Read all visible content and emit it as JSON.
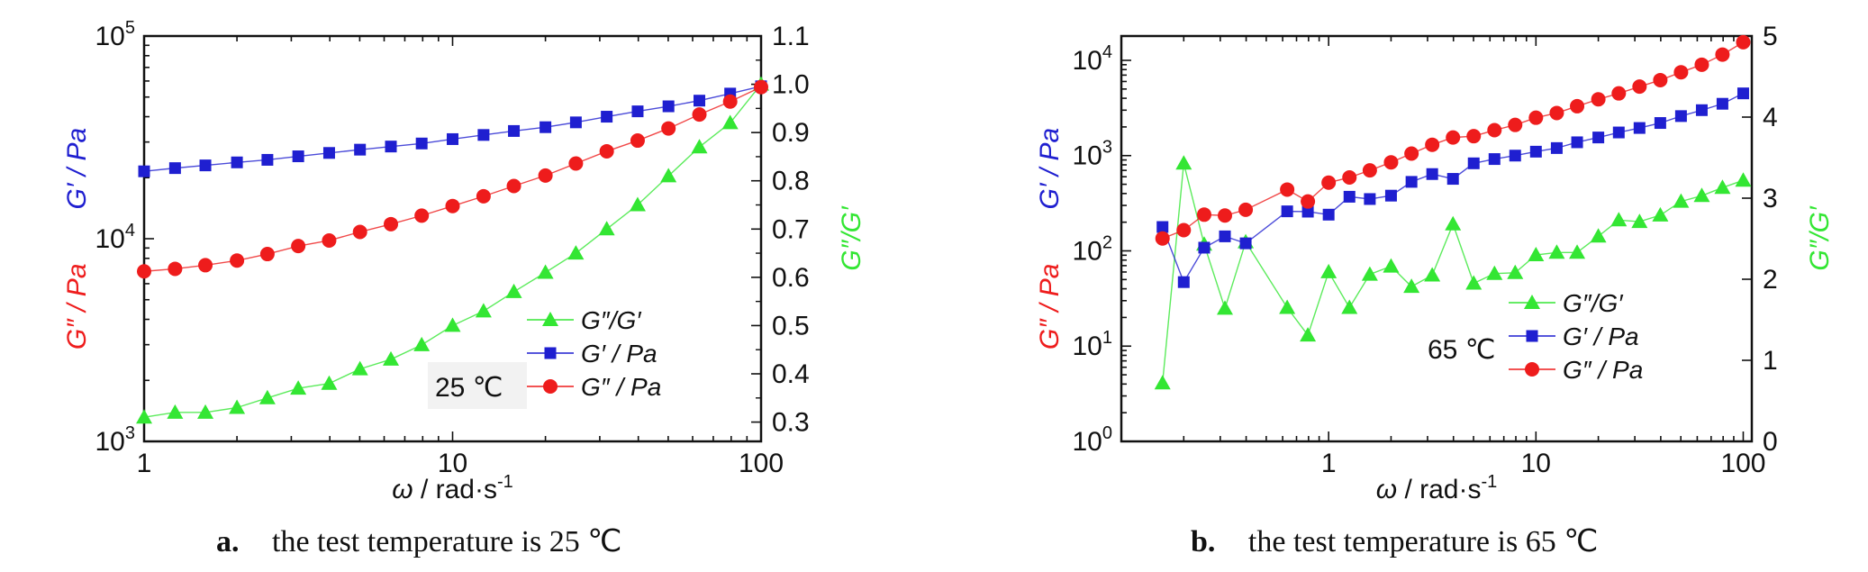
{
  "chart_data": [
    {
      "type": "line",
      "panel": "a",
      "caption_letter": "a.",
      "caption_text": "the test temperature is 25 ℃",
      "annotation": "25 ℃",
      "xlabel_symbol": "ω",
      "xlabel_unit": " / rad·s",
      "xlabel_sup": "-1",
      "x_scale": "log",
      "xlim": [
        1,
        100
      ],
      "x_ticks": [
        {
          "v": 1,
          "t": "1"
        },
        {
          "v": 10,
          "t": "10"
        },
        {
          "v": 100,
          "t": "100"
        }
      ],
      "y_left": {
        "scale": "log",
        "lim": [
          1000,
          100000
        ],
        "ticks": [
          {
            "v": 1000,
            "base": "10",
            "exp": "3"
          },
          {
            "v": 10000,
            "base": "10",
            "exp": "4"
          },
          {
            "v": 100000,
            "base": "10",
            "exp": "5"
          }
        ],
        "label_parts": [
          {
            "text": "G″ / Pa",
            "color": "#ee1c1c"
          },
          {
            "text": "G′ / Pa",
            "color": "#1f1fd0"
          }
        ]
      },
      "y_right": {
        "scale": "linear",
        "lim": [
          0.26,
          1.1
        ],
        "ticks": [
          {
            "v": 0.3,
            "t": "0.3"
          },
          {
            "v": 0.4,
            "t": "0.4"
          },
          {
            "v": 0.5,
            "t": "0.5"
          },
          {
            "v": 0.6,
            "t": "0.6"
          },
          {
            "v": 0.7,
            "t": "0.7"
          },
          {
            "v": 0.8,
            "t": "0.8"
          },
          {
            "v": 0.9,
            "t": "0.9"
          },
          {
            "v": 1.0,
            "t": "1.0"
          },
          {
            "v": 1.1,
            "t": "1.1"
          }
        ],
        "label": "G″/G′",
        "color": "#33e633"
      },
      "x": [
        1,
        1.26,
        1.58,
        2,
        2.51,
        3.16,
        3.98,
        5.01,
        6.31,
        7.94,
        10,
        12.6,
        15.8,
        20,
        25.1,
        31.6,
        39.8,
        50.1,
        63.1,
        79.4,
        100
      ],
      "series": [
        {
          "name": "G″/G′",
          "axis": "right",
          "marker": "triangle",
          "color": "#33e633",
          "values": [
            0.31,
            0.32,
            0.32,
            0.33,
            0.35,
            0.37,
            0.38,
            0.41,
            0.43,
            0.46,
            0.5,
            0.53,
            0.57,
            0.61,
            0.65,
            0.7,
            0.75,
            0.81,
            0.87,
            0.92,
            1.0
          ]
        },
        {
          "name": "G′ / Pa",
          "axis": "left",
          "marker": "square",
          "color": "#1f1fd0",
          "values": [
            21500,
            22300,
            23000,
            23800,
            24500,
            25500,
            26500,
            27500,
            28500,
            29500,
            31000,
            32500,
            34000,
            35500,
            37500,
            40000,
            42500,
            45000,
            48000,
            52000,
            56500
          ]
        },
        {
          "name": "G″ / Pa",
          "axis": "left",
          "marker": "circle",
          "color": "#ee1c1c",
          "values": [
            6900,
            7100,
            7400,
            7800,
            8400,
            9200,
            9800,
            10800,
            11800,
            13000,
            14500,
            16200,
            18200,
            20500,
            23500,
            27000,
            30500,
            35000,
            41000,
            47500,
            56000
          ]
        }
      ]
    },
    {
      "type": "line",
      "panel": "b",
      "caption_letter": "b.",
      "caption_text": "the test temperature is 65 ℃",
      "annotation": "65 ℃",
      "xlabel_symbol": "ω",
      "xlabel_unit": " / rad·s",
      "xlabel_sup": "-1",
      "x_scale": "log",
      "xlim": [
        0.1,
        110
      ],
      "x_ticks": [
        {
          "v": 1,
          "t": "1"
        },
        {
          "v": 10,
          "t": "10"
        },
        {
          "v": 100,
          "t": "100"
        }
      ],
      "y_left": {
        "scale": "log",
        "lim": [
          1,
          18000
        ],
        "ticks": [
          {
            "v": 1,
            "base": "10",
            "exp": "0"
          },
          {
            "v": 10,
            "base": "10",
            "exp": "1"
          },
          {
            "v": 100,
            "base": "10",
            "exp": "2"
          },
          {
            "v": 1000,
            "base": "10",
            "exp": "3"
          },
          {
            "v": 10000,
            "base": "10",
            "exp": "4"
          }
        ],
        "label_parts": [
          {
            "text": "G″ / Pa",
            "color": "#ee1c1c"
          },
          {
            "text": "G′ / Pa",
            "color": "#1f1fd0"
          }
        ]
      },
      "y_right": {
        "scale": "linear",
        "lim": [
          0,
          5
        ],
        "ticks": [
          {
            "v": 0,
            "t": "0"
          },
          {
            "v": 1,
            "t": "1"
          },
          {
            "v": 2,
            "t": "2"
          },
          {
            "v": 3,
            "t": "3"
          },
          {
            "v": 4,
            "t": "4"
          },
          {
            "v": 5,
            "t": "5"
          }
        ],
        "label": "G″/G′",
        "color": "#33e633"
      },
      "x": [
        0.158,
        0.2,
        0.251,
        0.316,
        0.398,
        0.631,
        0.794,
        1,
        1.26,
        1.58,
        2,
        2.51,
        3.16,
        3.98,
        5.01,
        6.31,
        7.94,
        10,
        12.6,
        15.8,
        20,
        25.1,
        31.6,
        39.8,
        50.1,
        63.1,
        79.4,
        100
      ],
      "series": [
        {
          "name": "G″/G′",
          "axis": "right",
          "marker": "triangle",
          "color": "#33e633",
          "values": [
            0.72,
            3.43,
            2.43,
            1.64,
            2.46,
            1.65,
            1.31,
            2.09,
            1.65,
            2.06,
            2.16,
            1.91,
            2.05,
            2.68,
            1.95,
            2.07,
            2.08,
            2.3,
            2.33,
            2.33,
            2.53,
            2.73,
            2.71,
            2.79,
            2.96,
            3.03,
            3.13,
            3.22
          ]
        },
        {
          "name": "G′ / Pa",
          "axis": "left",
          "marker": "square",
          "color": "#1f1fd0",
          "values": [
            178,
            47,
            108,
            142,
            120,
            260,
            258,
            240,
            370,
            350,
            380,
            530,
            640,
            570,
            830,
            920,
            1000,
            1100,
            1200,
            1380,
            1550,
            1750,
            1950,
            2200,
            2600,
            3000,
            3500,
            4500
          ]
        },
        {
          "name": "G″ / Pa",
          "axis": "left",
          "marker": "circle",
          "color": "#ee1c1c",
          "values": [
            135,
            165,
            240,
            235,
            270,
            440,
            330,
            520,
            590,
            700,
            850,
            1050,
            1300,
            1550,
            1600,
            1850,
            2100,
            2500,
            2800,
            3300,
            3900,
            4500,
            5300,
            6200,
            7500,
            9000,
            11500,
            15500
          ]
        }
      ]
    }
  ],
  "colors": {
    "green": "#33e633",
    "blue": "#1f1fd0",
    "red": "#ee1c1c",
    "axis": "#111111"
  }
}
